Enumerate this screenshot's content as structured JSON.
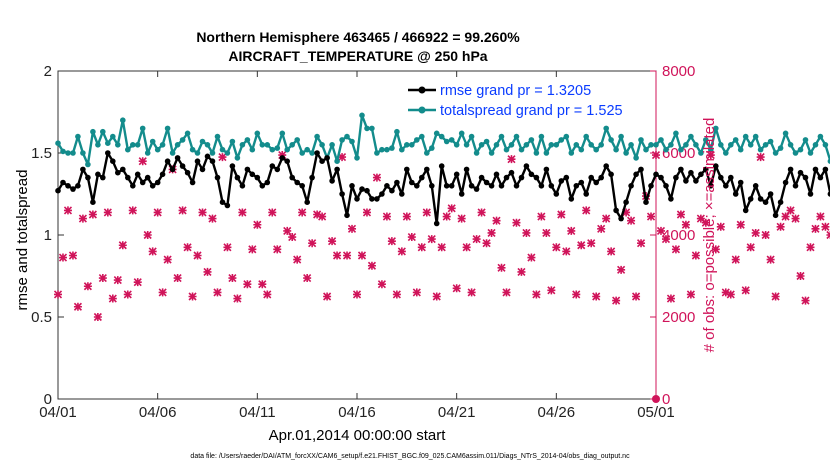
{
  "colors": {
    "rmse": "#000000",
    "totalspread": "#138c8c",
    "obs": "#d0145a",
    "legend_text": "#0a3cff",
    "right_axis": "#d0145a"
  },
  "chart_data": {
    "type": "line",
    "title_line1": "Northern Hemisphere 463465 / 466922 = 99.260%",
    "title_line2": "AIRCRAFT_TEMPERATURE @ 250 hPa",
    "xlabel": "Apr.01,2014 00:00:00 start",
    "ylabel_left": "rmse and totalspread",
    "ylabel_right": "# of obs: o=possible; ×=assimilated",
    "footer": "data file: /Users/raeder/DAI/ATM_forcXX/CAM6_setup/f.e21.FHIST_BGC.f09_025.CAM6assim.011/Diags_NTrS_2014-04/obs_diag_output.nc",
    "xlim": [
      0,
      30
    ],
    "ylim_left": [
      0,
      2
    ],
    "ylim_right": [
      0,
      8000
    ],
    "x_ticks": [
      0,
      5,
      10,
      15,
      20,
      25,
      30
    ],
    "x_tick_labels": [
      "04/01",
      "04/06",
      "04/11",
      "04/16",
      "04/21",
      "04/26",
      "05/01"
    ],
    "y_left_ticks": [
      "0",
      "0.5",
      "1",
      "1.5",
      "2"
    ],
    "y_right_ticks": [
      "0",
      "2000",
      "4000",
      "6000",
      "8000"
    ],
    "legend_position": "top-right",
    "x_step_days": 0.25,
    "series": [
      {
        "name": "rmse grand pr = 1.3205",
        "axis": "left",
        "values": [
          1.27,
          1.32,
          1.3,
          1.28,
          1.3,
          1.4,
          1.35,
          1.2,
          1.37,
          1.35,
          1.5,
          1.45,
          1.38,
          1.4,
          1.35,
          1.3,
          1.37,
          1.32,
          1.35,
          1.3,
          1.32,
          1.37,
          1.45,
          1.4,
          1.47,
          1.42,
          1.38,
          1.32,
          1.45,
          1.4,
          1.48,
          1.45,
          1.35,
          1.2,
          1.18,
          1.42,
          1.35,
          1.3,
          1.4,
          1.37,
          1.35,
          1.3,
          1.32,
          1.42,
          1.4,
          1.47,
          1.45,
          1.35,
          1.32,
          1.3,
          1.2,
          1.35,
          1.5,
          1.45,
          1.47,
          1.33,
          1.4,
          1.25,
          1.12,
          1.3,
          1.22,
          1.28,
          1.27,
          1.22,
          1.22,
          1.25,
          1.3,
          1.27,
          1.32,
          1.25,
          1.4,
          1.32,
          1.3,
          1.35,
          1.4,
          1.3,
          1.07,
          1.42,
          1.3,
          1.3,
          1.37,
          1.25,
          1.4,
          1.3,
          1.28,
          1.35,
          1.32,
          1.3,
          1.37,
          1.3,
          1.35,
          1.38,
          1.3,
          1.35,
          1.42,
          1.37,
          1.35,
          1.3,
          1.4,
          1.3,
          1.25,
          1.33,
          1.35,
          1.22,
          1.3,
          1.32,
          1.25,
          1.35,
          1.32,
          1.35,
          1.42,
          1.37,
          1.15,
          1.1,
          1.2,
          1.3,
          1.37,
          1.4,
          1.2,
          1.3,
          1.37,
          1.35,
          1.3,
          1.22,
          1.35,
          1.4,
          1.33,
          1.38,
          1.33,
          1.37,
          1.4,
          1.3,
          1.42,
          1.35,
          1.3,
          1.35,
          1.25,
          1.32,
          1.15,
          1.22,
          1.3,
          1.22,
          1.2,
          1.25,
          1.12,
          1.2,
          1.32,
          1.4,
          1.3,
          1.38,
          1.35,
          1.25,
          1.4,
          1.35,
          1.4,
          1.25,
          1.28,
          1.25,
          1.33,
          1.42,
          1.28,
          1.28,
          1.4,
          1.32,
          1.37,
          1.3,
          1.28,
          1.42,
          1.35,
          1.3,
          1.32,
          1.38,
          1.33,
          1.4,
          1.4,
          1.37,
          1.38,
          1.3,
          1.4,
          1.45,
          1.38,
          1.4,
          1.35,
          1.3,
          1.28,
          1.25,
          1.1,
          1.05,
          1.15,
          1.25,
          1.3,
          1.35,
          1.4,
          1.45,
          1.38,
          1.35,
          1.3,
          1.4,
          1.35,
          1.28,
          1.35,
          1.4,
          1.38,
          1.42,
          1.3,
          1.35,
          1.32,
          1.25,
          1.27,
          1.3,
          1.35,
          1.42,
          1.4,
          1.35,
          1.38,
          1.28,
          1.4,
          1.35,
          1.4,
          1.38,
          1.42,
          1.35,
          1.3,
          1.25,
          1.32,
          1.38,
          1.35,
          1.4,
          1.37,
          1.33,
          1.25,
          1.4,
          1.38
        ]
      },
      {
        "name": "totalspread grand pr = 1.525",
        "axis": "left",
        "values": [
          1.56,
          1.51,
          1.5,
          1.5,
          1.6,
          1.5,
          1.43,
          1.63,
          1.55,
          1.63,
          1.56,
          1.6,
          1.55,
          1.7,
          1.52,
          1.55,
          1.55,
          1.65,
          1.5,
          1.57,
          1.52,
          1.55,
          1.65,
          1.5,
          1.55,
          1.58,
          1.62,
          1.52,
          1.5,
          1.57,
          1.55,
          1.5,
          1.6,
          1.52,
          1.5,
          1.57,
          1.47,
          1.55,
          1.58,
          1.52,
          1.62,
          1.55,
          1.55,
          1.52,
          1.53,
          1.62,
          1.52,
          1.55,
          1.58,
          1.5,
          1.52,
          1.5,
          1.6,
          1.55,
          1.47,
          1.55,
          1.45,
          1.58,
          1.6,
          1.57,
          1.47,
          1.73,
          1.65,
          1.65,
          1.5,
          1.52,
          1.52,
          1.53,
          1.63,
          1.52,
          1.55,
          1.55,
          1.58,
          1.6,
          1.5,
          1.53,
          1.62,
          1.6,
          1.57,
          1.58,
          1.55,
          1.62,
          1.55,
          1.6,
          1.5,
          1.55,
          1.57,
          1.5,
          1.55,
          1.6,
          1.52,
          1.55,
          1.6,
          1.52,
          1.55,
          1.58,
          1.5,
          1.6,
          1.5,
          1.55,
          1.55,
          1.58,
          1.6,
          1.5,
          1.55,
          1.52,
          1.6,
          1.55,
          1.52,
          1.55,
          1.65,
          1.58,
          1.52,
          1.6,
          1.5,
          1.55,
          1.47,
          1.58,
          1.52,
          1.55,
          1.55,
          1.58,
          1.52,
          1.55,
          1.62,
          1.52,
          1.55,
          1.6,
          1.55,
          1.5,
          1.58,
          1.52,
          1.65,
          1.55,
          1.5,
          1.55,
          1.58,
          1.52,
          1.6,
          1.55,
          1.6,
          1.52,
          1.55,
          1.57,
          1.5,
          1.53,
          1.62,
          1.55,
          1.5,
          1.52,
          1.58,
          1.5,
          1.55,
          1.6,
          1.55,
          1.45,
          1.55,
          1.52,
          1.6,
          1.52,
          1.55,
          1.57,
          1.5,
          1.55,
          1.52,
          1.55,
          1.58,
          1.55,
          1.6,
          1.5,
          1.55,
          1.47,
          1.52,
          1.55,
          1.6,
          1.5,
          1.55,
          1.73,
          1.55,
          1.57,
          1.5,
          1.62,
          1.52,
          1.6,
          1.5,
          1.55,
          1.57,
          1.6,
          1.52,
          1.55,
          1.5,
          1.55,
          1.52,
          1.58,
          1.52,
          1.55,
          1.55,
          1.53,
          1.52,
          1.55,
          1.5,
          1.47,
          1.55,
          1.58,
          1.5,
          1.5,
          1.53,
          1.5,
          1.55,
          1.5,
          1.45,
          1.52,
          1.5,
          1.47,
          1.55,
          1.52,
          1.5,
          1.52,
          1.45,
          1.5,
          1.52,
          1.5,
          1.55,
          1.52,
          1.5,
          1.45,
          1.5,
          1.52,
          1.55,
          1.5,
          1.52,
          1.5,
          1.55,
          1.5,
          1.5
        ]
      },
      {
        "name": "# of obs: o=possible; ×=assimilated",
        "axis": "right",
        "marker": "x",
        "values": [
          2550,
          3450,
          4600,
          3500,
          2250,
          4400,
          2750,
          4500,
          2000,
          2950,
          4550,
          2450,
          2900,
          3750,
          2550,
          4600,
          2850,
          5800,
          4000,
          3600,
          4550,
          2600,
          3400,
          5600,
          2950,
          4600,
          3700,
          2500,
          3500,
          4550,
          3100,
          4400,
          2600,
          5900,
          3700,
          2950,
          2450,
          4550,
          2800,
          3650,
          4250,
          2800,
          2550,
          4550,
          3650,
          5950,
          4100,
          3950,
          3400,
          4550,
          2950,
          3800,
          4500,
          4450,
          2500,
          3850,
          3500,
          5900,
          3500,
          4150,
          2550,
          3500,
          4550,
          3250,
          5400,
          2800,
          4450,
          3850,
          2550,
          3600,
          4450,
          3950,
          2600,
          3700,
          4550,
          3900,
          2500,
          3700,
          4450,
          4650,
          2700,
          4400,
          3700,
          2600,
          3900,
          4550,
          3800,
          4050,
          4350,
          3200,
          2600,
          5850,
          4300,
          3100,
          4050,
          3450,
          2550,
          4450,
          4050,
          2650,
          3700,
          4500,
          3600,
          4100,
          2550,
          3750,
          4600,
          3800,
          2500,
          4150,
          4400,
          3600,
          2400,
          3150,
          4550,
          4350,
          2500,
          3800,
          4950,
          4450,
          5950,
          4100,
          3900,
          2450,
          3650,
          4500,
          4250,
          2550,
          3500,
          4400,
          4300,
          5950,
          3650,
          4200,
          2600,
          2550,
          3400,
          4250,
          2650,
          3700,
          4050,
          5900,
          4000,
          3400,
          2500,
          4200,
          4450,
          4600,
          4400,
          3000,
          2400,
          3700,
          4150,
          4450,
          4200,
          4000,
          2500,
          2650,
          5800,
          4100,
          2950,
          3550,
          4600,
          3400,
          2400,
          2600,
          4350,
          5550,
          3650,
          2450,
          4800,
          4400,
          2450,
          3850,
          4550,
          3600,
          2450,
          3800,
          4950,
          4600,
          5950,
          4200,
          3750,
          2500,
          3650,
          4500,
          4250,
          2550,
          3900,
          4500,
          4400,
          5950,
          3700,
          4400,
          2500,
          3800,
          4550,
          3800,
          2500,
          3650,
          4550,
          3900,
          2600,
          4050,
          4450,
          3850,
          2400,
          3700,
          4500,
          4050,
          2550,
          3900,
          4350,
          5950,
          3750,
          4200,
          2600,
          3550,
          4450,
          3600,
          2650,
          3800,
          4550,
          3900,
          2550,
          4000,
          4200,
          3650,
          2500,
          3750,
          4500,
          3850,
          2650,
          4050,
          4050,
          3700,
          2650,
          0
        ]
      }
    ]
  }
}
